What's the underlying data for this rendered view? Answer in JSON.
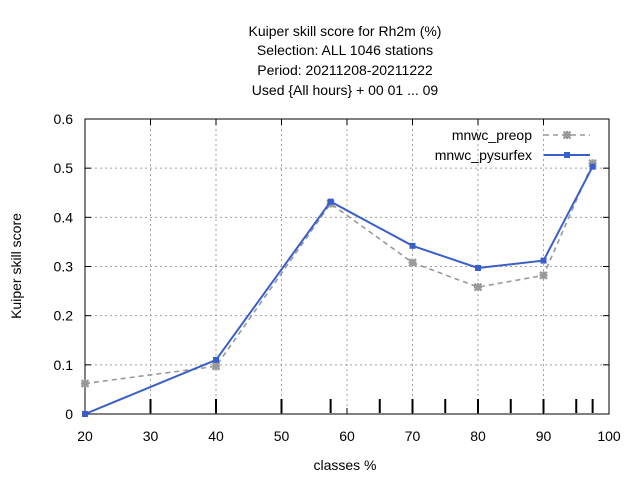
{
  "chart_data": {
    "type": "line",
    "title_lines": [
      "Kuiper skill score  for Rh2m (%)",
      "Selection: ALL   1046 stations",
      "Period: 20211208-20211222",
      "Used {All hours} + 00 01 ... 09"
    ],
    "xlabel": "classes %",
    "ylabel": "Kuiper skill score",
    "xlim": [
      20,
      100
    ],
    "ylim": [
      0,
      0.6
    ],
    "x_ticks": [
      20,
      30,
      40,
      50,
      60,
      70,
      80,
      90,
      100
    ],
    "y_ticks": [
      0,
      0.1,
      0.2,
      0.3,
      0.4,
      0.5,
      0.6
    ],
    "y_tick_labels": [
      "0",
      "0.1",
      "0.2",
      "0.3",
      "0.4",
      "0.5",
      "0.6"
    ],
    "class_markers": [
      30,
      40,
      50,
      57.5,
      65,
      70,
      75,
      80,
      85,
      90,
      95,
      97.5
    ],
    "grid": true,
    "legend_position": "top-right",
    "series": [
      {
        "name": "mnwc_preop",
        "color": "#999999",
        "dashed": true,
        "x": [
          20,
          40,
          57.5,
          70,
          80,
          90,
          97.5
        ],
        "y": [
          0.062,
          0.097,
          0.428,
          0.308,
          0.258,
          0.282,
          0.51
        ]
      },
      {
        "name": "mnwc_pysurfex",
        "color": "#3b5fc8",
        "dashed": false,
        "x": [
          20,
          40,
          57.5,
          70,
          80,
          90,
          97.5
        ],
        "y": [
          0.0,
          0.11,
          0.432,
          0.342,
          0.297,
          0.312,
          0.503
        ]
      }
    ]
  }
}
